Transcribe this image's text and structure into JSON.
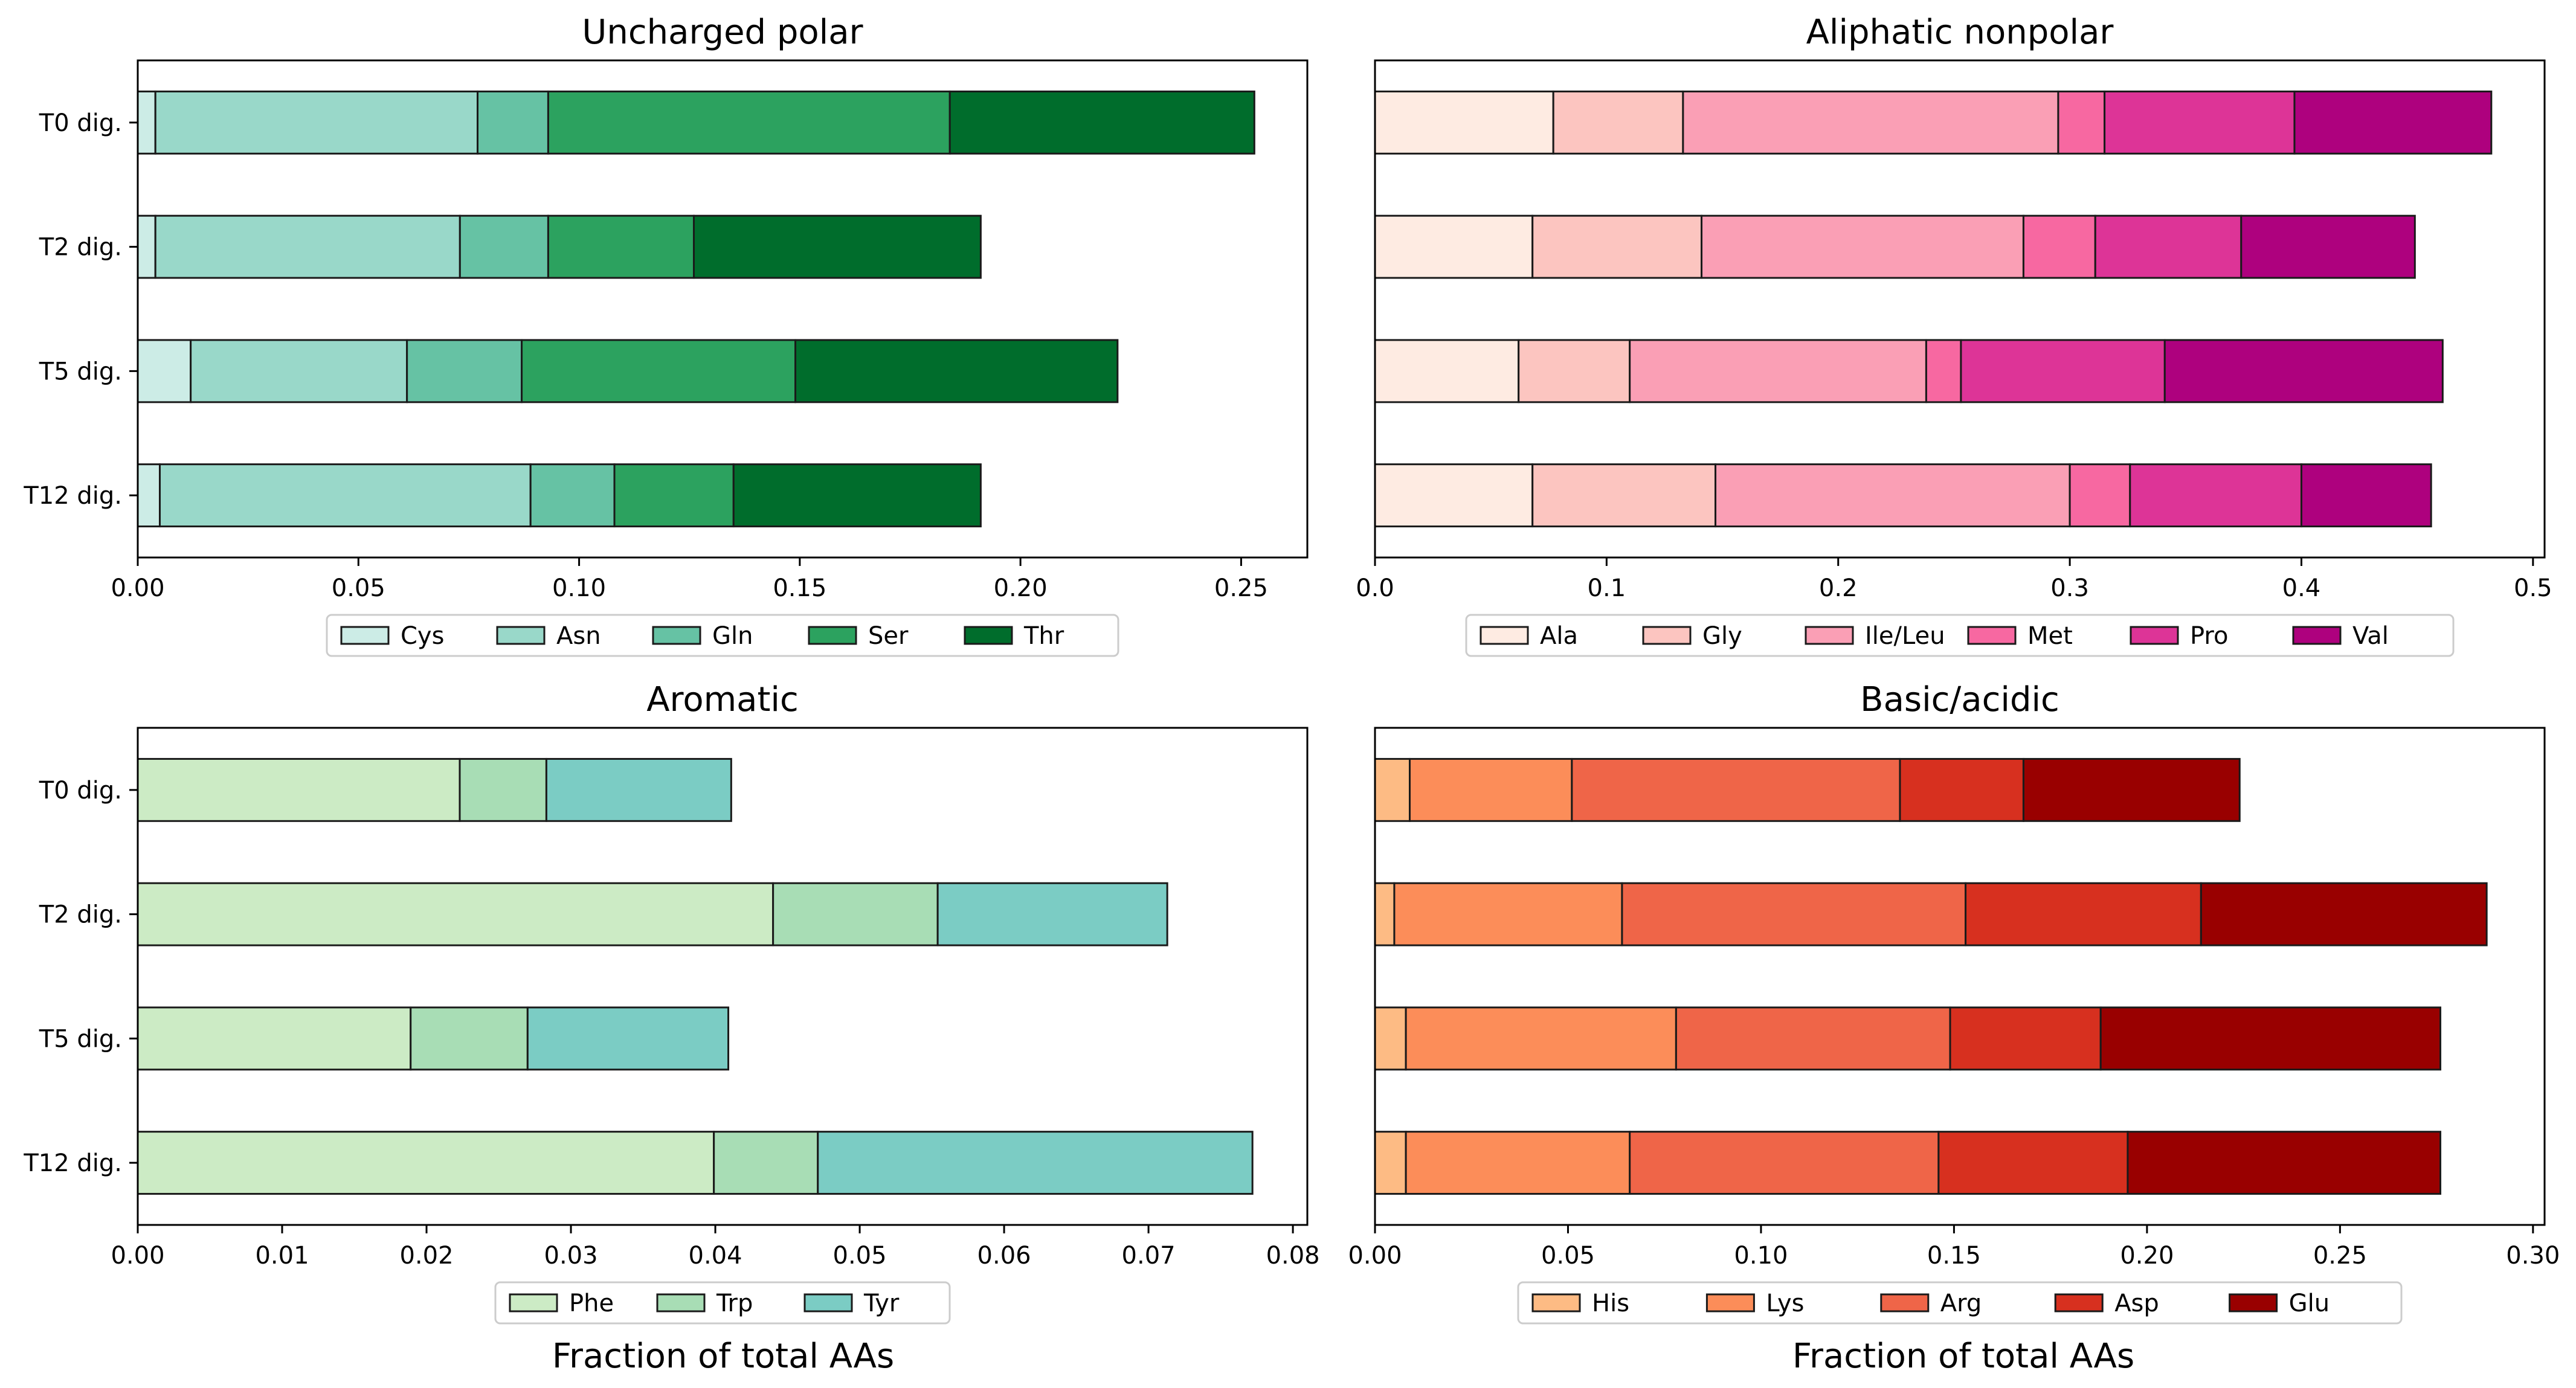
{
  "figure": {
    "xlabel": "Fraction of total AAs"
  },
  "chart_data": [
    {
      "type": "bar",
      "orientation": "horizontal",
      "stacked": true,
      "title": "Uncharged polar",
      "categories": [
        "T0 dig.",
        "T2 dig.",
        "T5 dig.",
        "T12 dig."
      ],
      "xlim": [
        0,
        0.265
      ],
      "xticks": [
        0.0,
        0.05,
        0.1,
        0.15,
        0.2,
        0.25
      ],
      "xtick_labels": [
        "0.00",
        "0.05",
        "0.10",
        "0.15",
        "0.20",
        "0.25"
      ],
      "xlabel": "",
      "legend_position": "bottom",
      "series": [
        {
          "name": "Cys",
          "color": "#ccece6",
          "values": [
            0.004,
            0.004,
            0.012,
            0.005
          ]
        },
        {
          "name": "Asn",
          "color": "#99d8c9",
          "values": [
            0.073,
            0.069,
            0.049,
            0.084
          ]
        },
        {
          "name": "Gln",
          "color": "#66c2a4",
          "values": [
            0.016,
            0.02,
            0.026,
            0.019
          ]
        },
        {
          "name": "Ser",
          "color": "#2ca25f",
          "values": [
            0.091,
            0.033,
            0.062,
            0.027
          ]
        },
        {
          "name": "Thr",
          "color": "#006d2c",
          "values": [
            0.069,
            0.065,
            0.073,
            0.056
          ]
        }
      ]
    },
    {
      "type": "bar",
      "orientation": "horizontal",
      "stacked": true,
      "title": "Aliphatic nonpolar",
      "categories": [
        "T0 dig.",
        "T2 dig.",
        "T5 dig.",
        "T12 dig."
      ],
      "xlim": [
        0,
        0.505
      ],
      "xticks": [
        0.0,
        0.1,
        0.2,
        0.3,
        0.4,
        0.5
      ],
      "xtick_labels": [
        "0.0",
        "0.1",
        "0.2",
        "0.3",
        "0.4",
        "0.5"
      ],
      "xlabel": "",
      "legend_position": "bottom",
      "series": [
        {
          "name": "Ala",
          "color": "#feebe2",
          "values": [
            0.077,
            0.068,
            0.062,
            0.068
          ]
        },
        {
          "name": "Gly",
          "color": "#fcc5c0",
          "values": [
            0.056,
            0.073,
            0.048,
            0.079
          ]
        },
        {
          "name": "Ile/Leu",
          "color": "#fa9fb5",
          "values": [
            0.162,
            0.139,
            0.128,
            0.153
          ]
        },
        {
          "name": "Met",
          "color": "#f768a1",
          "values": [
            0.02,
            0.031,
            0.015,
            0.026
          ]
        },
        {
          "name": "Pro",
          "color": "#dd3497",
          "values": [
            0.082,
            0.063,
            0.088,
            0.074
          ]
        },
        {
          "name": "Val",
          "color": "#ae017e",
          "values": [
            0.085,
            0.075,
            0.12,
            0.056
          ]
        }
      ]
    },
    {
      "type": "bar",
      "orientation": "horizontal",
      "stacked": true,
      "title": "Aromatic",
      "categories": [
        "T0 dig.",
        "T2 dig.",
        "T5 dig.",
        "T12 dig."
      ],
      "xlim": [
        0,
        0.081
      ],
      "xticks": [
        0.0,
        0.01,
        0.02,
        0.03,
        0.04,
        0.05,
        0.06,
        0.07,
        0.08
      ],
      "xtick_labels": [
        "0.00",
        "0.01",
        "0.02",
        "0.03",
        "0.04",
        "0.05",
        "0.06",
        "0.07",
        "0.08"
      ],
      "xlabel": "Fraction of total AAs",
      "legend_position": "bottom",
      "series": [
        {
          "name": "Phe",
          "color": "#ccebc5",
          "values": [
            0.0223,
            0.044,
            0.0189,
            0.0399
          ]
        },
        {
          "name": "Trp",
          "color": "#a8ddb5",
          "values": [
            0.006,
            0.0114,
            0.0081,
            0.0072
          ]
        },
        {
          "name": "Tyr",
          "color": "#7bccc4",
          "values": [
            0.0128,
            0.0159,
            0.0139,
            0.0301
          ]
        }
      ]
    },
    {
      "type": "bar",
      "orientation": "horizontal",
      "stacked": true,
      "title": "Basic/acidic",
      "categories": [
        "T0 dig.",
        "T2 dig.",
        "T5 dig.",
        "T12 dig."
      ],
      "xlim": [
        0,
        0.303
      ],
      "xticks": [
        0.0,
        0.05,
        0.1,
        0.15,
        0.2,
        0.25,
        0.3
      ],
      "xtick_labels": [
        "0.00",
        "0.05",
        "0.10",
        "0.15",
        "0.20",
        "0.25",
        "0.30"
      ],
      "xlabel": "Fraction of total AAs",
      "legend_position": "bottom",
      "series": [
        {
          "name": "His",
          "color": "#fdbb84",
          "values": [
            0.009,
            0.005,
            0.008,
            0.008
          ]
        },
        {
          "name": "Lys",
          "color": "#fc8d59",
          "values": [
            0.042,
            0.059,
            0.07,
            0.058
          ]
        },
        {
          "name": "Arg",
          "color": "#ef6548",
          "values": [
            0.085,
            0.089,
            0.071,
            0.08
          ]
        },
        {
          "name": "Asp",
          "color": "#d7301f",
          "values": [
            0.032,
            0.061,
            0.039,
            0.049
          ]
        },
        {
          "name": "Glu",
          "color": "#990000",
          "values": [
            0.056,
            0.074,
            0.088,
            0.081
          ]
        }
      ]
    }
  ]
}
